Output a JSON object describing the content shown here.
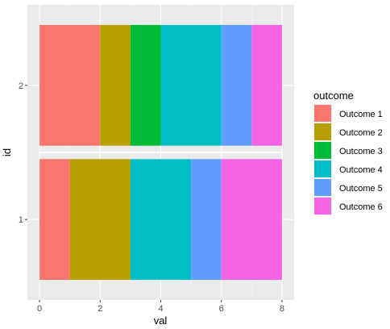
{
  "chart_data": {
    "type": "bar",
    "orientation": "horizontal-stacked",
    "xlabel": "val",
    "ylabel": "id",
    "xlim": [
      -0.4,
      8.4
    ],
    "xticks": [
      0,
      2,
      4,
      6,
      8
    ],
    "categories": [
      "1",
      "2"
    ],
    "grid": true,
    "legend": {
      "title": "outcome",
      "placement": "right",
      "entries": [
        "Outcome 1",
        "Outcome 2",
        "Outcome 3",
        "Outcome 4",
        "Outcome 5",
        "Outcome 6"
      ]
    },
    "colors": {
      "Outcome 1": "#F8766D",
      "Outcome 2": "#B79F00",
      "Outcome 3": "#00BA38",
      "Outcome 4": "#00BFC4",
      "Outcome 5": "#619CFF",
      "Outcome 6": "#F564E3"
    },
    "segments": [
      {
        "id": "1",
        "outcome": "Outcome 1",
        "start": 0,
        "end": 1
      },
      {
        "id": "1",
        "outcome": "Outcome 2",
        "start": 1,
        "end": 3
      },
      {
        "id": "1",
        "outcome": "Outcome 4",
        "start": 3,
        "end": 5
      },
      {
        "id": "1",
        "outcome": "Outcome 5",
        "start": 5,
        "end": 6
      },
      {
        "id": "1",
        "outcome": "Outcome 6",
        "start": 6,
        "end": 8
      },
      {
        "id": "2",
        "outcome": "Outcome 1",
        "start": 0,
        "end": 2
      },
      {
        "id": "2",
        "outcome": "Outcome 2",
        "start": 2,
        "end": 3
      },
      {
        "id": "2",
        "outcome": "Outcome 3",
        "start": 3,
        "end": 4
      },
      {
        "id": "2",
        "outcome": "Outcome 4",
        "start": 4,
        "end": 6
      },
      {
        "id": "2",
        "outcome": "Outcome 5",
        "start": 6,
        "end": 7
      },
      {
        "id": "2",
        "outcome": "Outcome 6",
        "start": 7,
        "end": 8
      }
    ]
  }
}
